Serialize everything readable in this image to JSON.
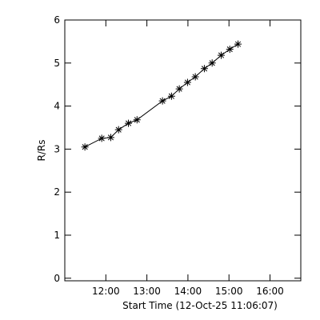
{
  "chart_data": {
    "type": "scatter-line",
    "xlabel": "Start Time (12-Oct-25 11:06:07)",
    "ylabel": "R/Rs",
    "x": [
      11.49,
      11.9,
      12.12,
      12.31,
      12.55,
      12.76,
      13.38,
      13.6,
      13.79,
      13.99,
      14.18,
      14.4,
      14.59,
      14.81,
      15.02,
      15.22
    ],
    "values": [
      3.05,
      3.25,
      3.27,
      3.45,
      3.6,
      3.68,
      4.12,
      4.23,
      4.4,
      4.55,
      4.68,
      4.87,
      5.0,
      5.18,
      5.32,
      5.44
    ],
    "color": "#000000",
    "xlim": [
      11.0,
      16.75
    ],
    "xticks": [
      {
        "value": 12,
        "label": "12:00"
      },
      {
        "value": 13,
        "label": "13:00"
      },
      {
        "value": 14,
        "label": "14:00"
      },
      {
        "value": 15,
        "label": "15:00"
      },
      {
        "value": 16,
        "label": "16:00"
      }
    ],
    "ylim": [
      -0.06,
      6
    ],
    "yticks": [
      0,
      1,
      2,
      3,
      4,
      5,
      6
    ]
  }
}
